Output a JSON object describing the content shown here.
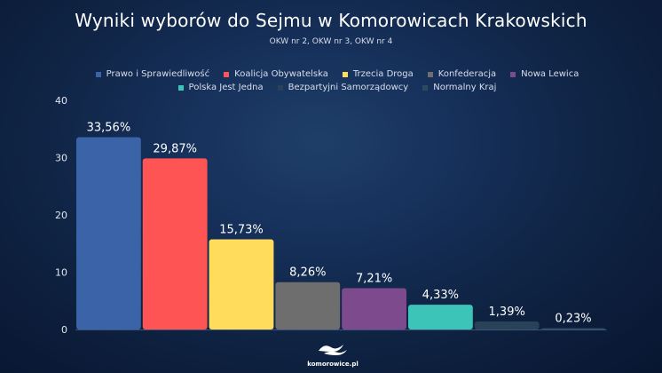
{
  "title": "Wyniki wyborów do Sejmu w Komorowicach Krakowskich",
  "subtitle": "OKW nr 2, OKW nr 3, OKW nr 4",
  "footer": {
    "logo_text": "komorowice.pl"
  },
  "chart_data": {
    "type": "bar",
    "categories": [
      "Prawo i Sprawiedliwość",
      "Koalicja Obywatelska",
      "Trzecia Droga",
      "Konfederacja",
      "Nowa Lewica",
      "Polska Jest Jedna",
      "Bezpartyjni Samorządowcy",
      "Normalny Kraj"
    ],
    "values": [
      33.56,
      29.87,
      15.73,
      8.26,
      7.21,
      4.33,
      1.39,
      0.23
    ],
    "value_labels": [
      "33,56%",
      "29,87%",
      "15,73%",
      "8,26%",
      "7,21%",
      "4,33%",
      "1,39%",
      "0,23%"
    ],
    "colors": [
      "#3a63a8",
      "#ff5454",
      "#ffdc5b",
      "#6e6e6e",
      "#7e4a8e",
      "#3cc4b8",
      "#294257",
      "#2f4a5e"
    ],
    "ylim": [
      0,
      40
    ],
    "yticks": [
      "0",
      "10",
      "20",
      "30",
      "40"
    ],
    "legend": "top-center",
    "grid": false
  }
}
